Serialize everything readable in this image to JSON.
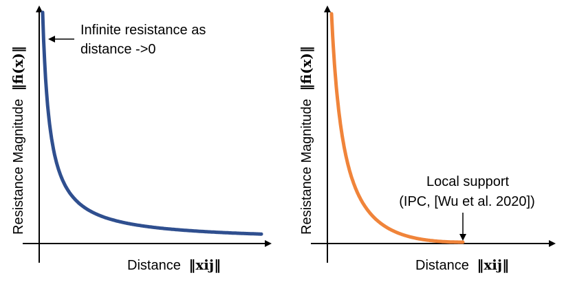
{
  "chart_data": [
    {
      "type": "line",
      "name": "inverse-barrier",
      "ylabel_prefix": "Resistance Magnitude",
      "ylabel_math": "‖fi(x)‖",
      "xlabel_prefix": "Distance",
      "xlabel_math": "‖xij‖",
      "color": "#2f4f8f",
      "curve": "y = 1/x (unbounded near 0, no upper limit)",
      "xlim": [
        0,
        1
      ],
      "ylim": [
        0,
        1
      ],
      "annotation": {
        "line1": "Infinite resistance as",
        "line2": "distance ->0"
      },
      "show_ticks": false,
      "grid": false
    },
    {
      "type": "line",
      "name": "local-support",
      "ylabel_prefix": "Resistance Magnitude",
      "ylabel_math": "‖fi(x)‖",
      "xlabel_prefix": "Distance",
      "xlabel_math": "‖xij‖",
      "color": "#f0843a",
      "curve": "barrier vanishing beyond support distance",
      "xlim": [
        0,
        1
      ],
      "ylim": [
        0,
        1
      ],
      "annotation": {
        "line1": "Local support",
        "line1_color": "#e8201e",
        "line2": "(IPC, [Wu et al. 2020])"
      },
      "show_ticks": false,
      "grid": false
    }
  ]
}
